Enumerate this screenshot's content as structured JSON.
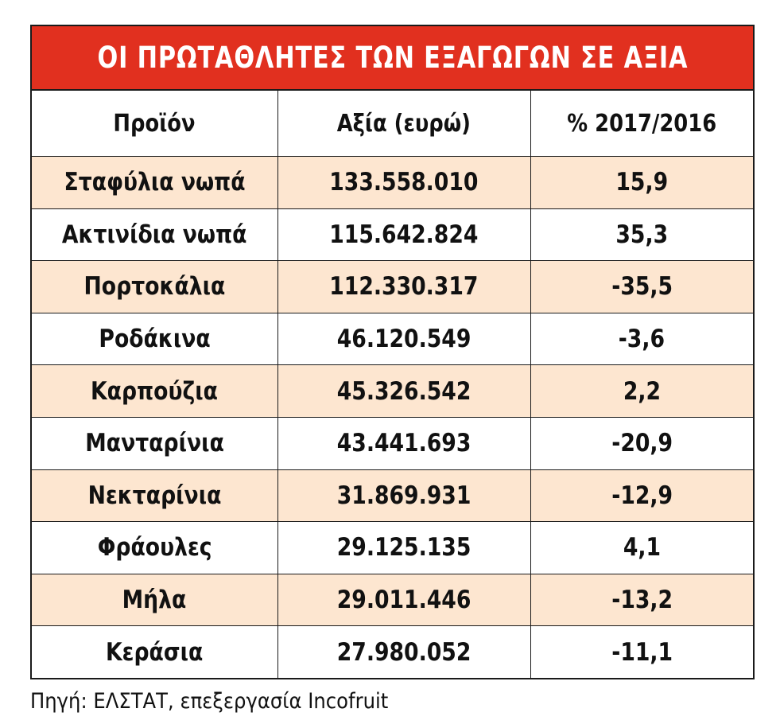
{
  "chart_data": {
    "type": "table",
    "title": "ΟΙ ΠΡΩΤΑΘΛΗΤΕΣ ΤΩΝ ΕΞΑΓΩΓΩΝ ΣΕ ΑΞΙΑ",
    "columns": [
      "Προϊόν",
      "Αξία (ευρώ)",
      "% 2017/2016"
    ],
    "rows": [
      [
        "Σταφύλια νωπά",
        "133.558.010",
        "15,9"
      ],
      [
        "Ακτινίδια νωπά",
        "115.642.824",
        "35,3"
      ],
      [
        "Πορτοκάλια",
        "112.330.317",
        "-35,5"
      ],
      [
        "Ροδάκινα",
        "46.120.549",
        "-3,6"
      ],
      [
        "Καρπούζια",
        "45.326.542",
        "2,2"
      ],
      [
        "Μανταρίνια",
        "43.441.693",
        "-20,9"
      ],
      [
        "Νεκταρίνια",
        "31.869.931",
        "-12,9"
      ],
      [
        "Φράουλες",
        "29.125.135",
        "4,1"
      ],
      [
        "Μήλα",
        "29.011.446",
        "-13,2"
      ],
      [
        "Κεράσια",
        "27.980.052",
        "-11,1"
      ]
    ],
    "source": "Πηγή: ΕΛΣΤΑΤ, επεξεργασία Incofruit"
  },
  "colors": {
    "title_bg": "#e1301f",
    "title_text": "#ffffff",
    "row_shade": "#fde6d0",
    "row_plain": "#ffffff",
    "border": "#1a1a1a"
  }
}
